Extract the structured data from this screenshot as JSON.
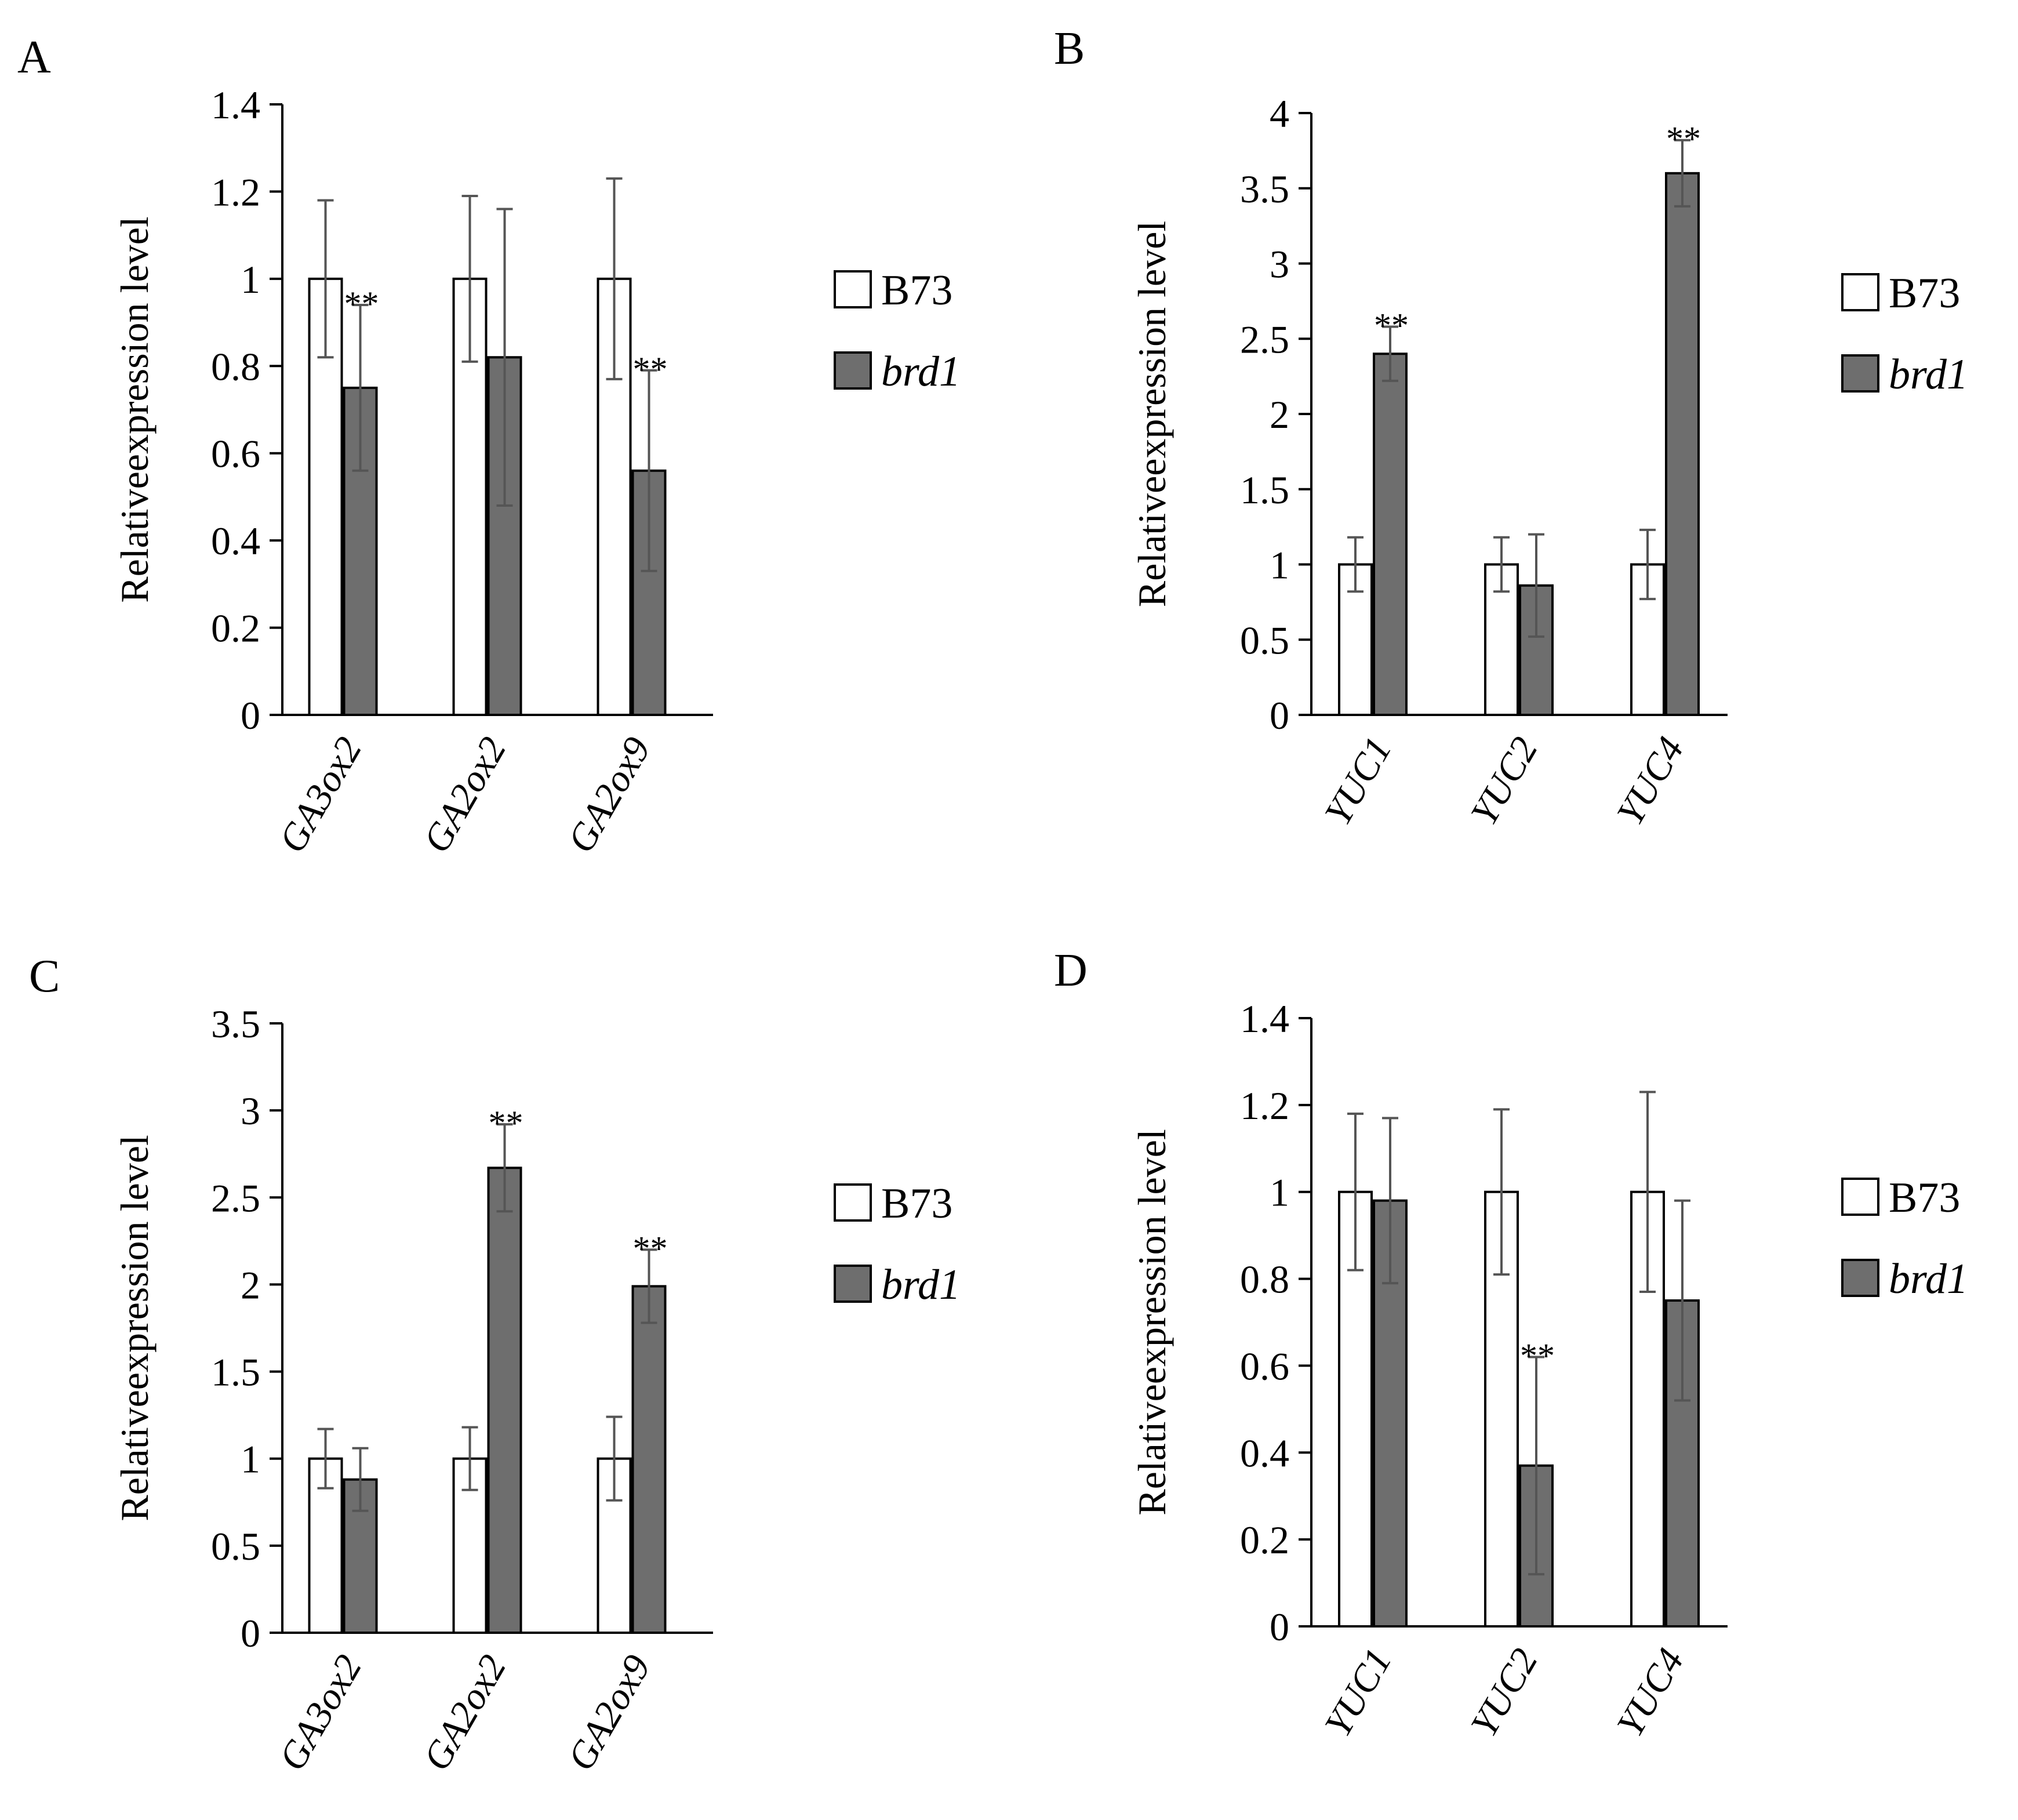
{
  "figure_title": "",
  "colors": {
    "b73": "#ffffff",
    "brd1": "#6e6e6e",
    "axis": "#000000",
    "error": "#555555"
  },
  "chart_data": [
    {
      "panel": "A",
      "type": "bar",
      "categories": [
        "GA3ox2",
        "GA2ox2",
        "GA2ox9"
      ],
      "series": [
        {
          "name": "B73",
          "values": [
            1.0,
            1.0,
            1.0
          ],
          "errors": [
            0.18,
            0.19,
            0.23
          ],
          "significance": [
            "",
            "",
            ""
          ]
        },
        {
          "name": "brd1",
          "values": [
            0.75,
            0.82,
            0.56
          ],
          "errors": [
            0.19,
            0.34,
            0.23
          ],
          "significance": [
            "**",
            "",
            "**"
          ]
        }
      ],
      "ylabel": "Relativeexpression level",
      "ylim": [
        0,
        1.4
      ],
      "yticks": [
        0,
        0.2,
        0.4,
        0.6,
        0.8,
        1,
        1.2,
        1.4
      ],
      "ytick_labels": [
        "0",
        "0.2",
        "0.4",
        "0.6",
        "0.8",
        "1",
        "1.2",
        "1.4"
      ],
      "legend": [
        "B73",
        "brd1"
      ],
      "legend_position": "right"
    },
    {
      "panel": "B",
      "type": "bar",
      "categories": [
        "YUC1",
        "YUC2",
        "YUC4"
      ],
      "series": [
        {
          "name": "B73",
          "values": [
            1.0,
            1.0,
            1.0
          ],
          "errors": [
            0.18,
            0.18,
            0.23
          ],
          "significance": [
            "",
            "",
            ""
          ]
        },
        {
          "name": "brd1",
          "values": [
            2.4,
            0.86,
            3.6
          ],
          "errors": [
            0.18,
            0.34,
            0.22
          ],
          "significance": [
            "**",
            "",
            "**"
          ]
        }
      ],
      "ylabel": "Relativeexpression level",
      "ylim": [
        0,
        4
      ],
      "yticks": [
        0,
        0.5,
        1,
        1.5,
        2,
        2.5,
        3,
        3.5,
        4
      ],
      "ytick_labels": [
        "0",
        "0.5",
        "1",
        "1.5",
        "2",
        "2.5",
        "3",
        "3.5",
        "4"
      ],
      "legend": [
        "B73",
        "brd1"
      ],
      "legend_position": "right"
    },
    {
      "panel": "C",
      "type": "bar",
      "categories": [
        "GA3ox2",
        "GA2ox2",
        "GA2ox9"
      ],
      "series": [
        {
          "name": "B73",
          "values": [
            1.0,
            1.0,
            1.0
          ],
          "errors": [
            0.17,
            0.18,
            0.24
          ],
          "significance": [
            "",
            "",
            ""
          ]
        },
        {
          "name": "brd1",
          "values": [
            0.88,
            2.67,
            1.99
          ],
          "errors": [
            0.18,
            0.25,
            0.21
          ],
          "significance": [
            "",
            "**",
            "**"
          ]
        }
      ],
      "ylabel": "Relativeexpression level",
      "ylim": [
        0,
        3.5
      ],
      "yticks": [
        0,
        0.5,
        1,
        1.5,
        2,
        2.5,
        3,
        3.5
      ],
      "ytick_labels": [
        "0",
        "0.5",
        "1",
        "1.5",
        "2",
        "2.5",
        "3",
        "3.5"
      ],
      "legend": [
        "B73",
        "brd1"
      ],
      "legend_position": "right"
    },
    {
      "panel": "D",
      "type": "bar",
      "categories": [
        "YUC1",
        "YUC2",
        "YUC4"
      ],
      "series": [
        {
          "name": "B73",
          "values": [
            1.0,
            1.0,
            1.0
          ],
          "errors": [
            0.18,
            0.19,
            0.23
          ],
          "significance": [
            "",
            "",
            ""
          ]
        },
        {
          "name": "brd1",
          "values": [
            0.98,
            0.37,
            0.75
          ],
          "errors": [
            0.19,
            0.25,
            0.23
          ],
          "significance": [
            "",
            "**",
            ""
          ]
        }
      ],
      "ylabel": "Relativeexpression level",
      "ylim": [
        0,
        1.4
      ],
      "yticks": [
        0,
        0.2,
        0.4,
        0.6,
        0.8,
        1,
        1.2,
        1.4
      ],
      "ytick_labels": [
        "0",
        "0.2",
        "0.4",
        "0.6",
        "0.8",
        "1",
        "1.2",
        "1.4"
      ],
      "legend": [
        "B73",
        "brd1"
      ],
      "legend_position": "right"
    }
  ]
}
